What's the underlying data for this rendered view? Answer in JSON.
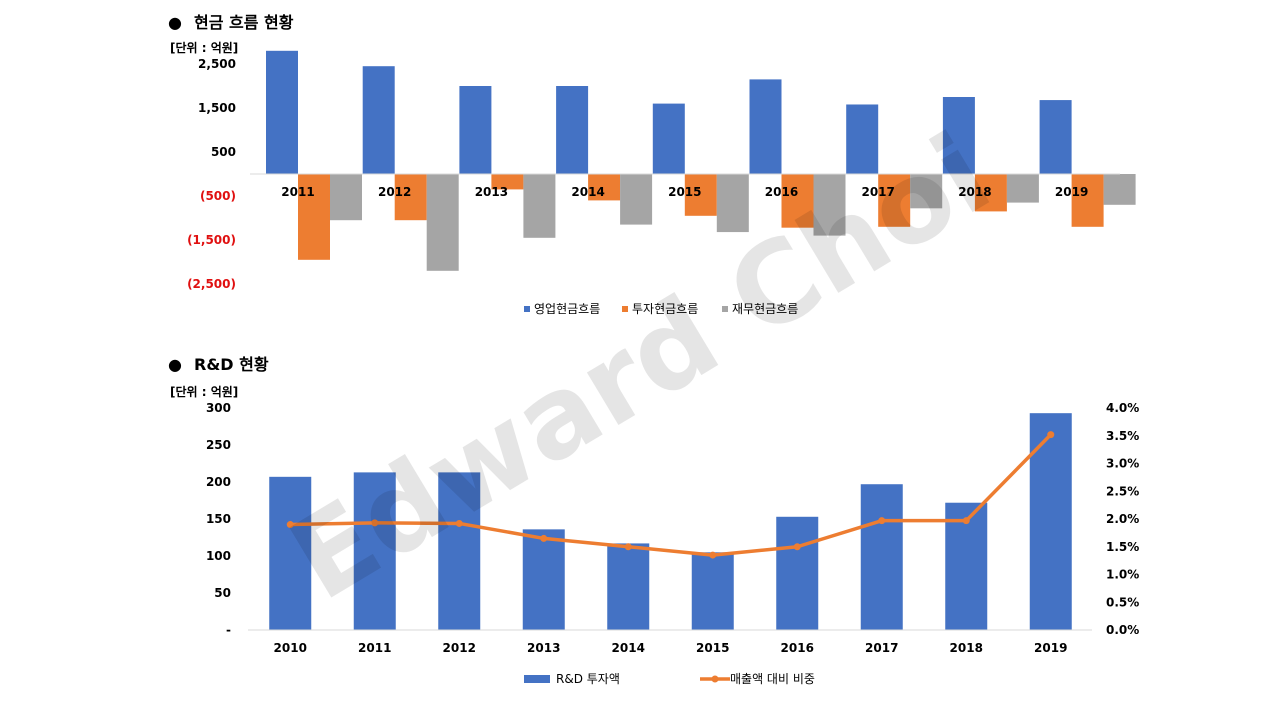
{
  "watermark": "Edward Choi",
  "sections": {
    "cash": {
      "bullet": "●",
      "title": "현금 흐름 현황",
      "unit": "[단위 : 억원]"
    },
    "rnd": {
      "bullet": "●",
      "title": "R&D 현황",
      "unit": "[단위 : 억원]"
    }
  },
  "colors": {
    "blue": "#4472C4",
    "orange": "#ED7D31",
    "gray": "#A5A5A5",
    "negative": "#E01010"
  },
  "chart_data": [
    {
      "type": "bar",
      "categories": [
        "2011",
        "2012",
        "2013",
        "2014",
        "2015",
        "2016",
        "2017",
        "2018",
        "2019"
      ],
      "series": [
        {
          "name": "영업현금흐름",
          "values": [
            2800,
            2450,
            2000,
            2000,
            1600,
            2150,
            1580,
            1750,
            1680
          ]
        },
        {
          "name": "투자현금흐름",
          "values": [
            -1950,
            -1050,
            -350,
            -600,
            -950,
            -1220,
            -1200,
            -850,
            -1200
          ]
        },
        {
          "name": "재무현금흐름",
          "values": [
            -1050,
            -2200,
            -1450,
            -1150,
            -1320,
            -1400,
            -780,
            -650,
            -700
          ]
        }
      ],
      "ylim": [
        -2900,
        2900
      ],
      "yticks": [
        {
          "value": 2500,
          "label": "2,500"
        },
        {
          "value": 1500,
          "label": "1,500"
        },
        {
          "value": 500,
          "label": "500"
        },
        {
          "value": -500,
          "label": "(500)"
        },
        {
          "value": -1500,
          "label": "(1,500)"
        },
        {
          "value": -2500,
          "label": "(2,500)"
        }
      ],
      "legend_position": "bottom",
      "grid": false
    },
    {
      "type": "bar",
      "categories": [
        "2010",
        "2011",
        "2012",
        "2013",
        "2014",
        "2015",
        "2016",
        "2017",
        "2018",
        "2019"
      ],
      "series": [
        {
          "name": "R&D 투자액",
          "type": "bar",
          "axis": "left",
          "values": [
            207,
            213,
            213,
            136,
            117,
            105,
            153,
            197,
            172,
            293
          ]
        },
        {
          "name": "매출액 대비 비중",
          "type": "line",
          "axis": "right",
          "values": [
            1.9,
            1.93,
            1.92,
            1.65,
            1.5,
            1.35,
            1.5,
            1.97,
            1.97,
            3.52
          ]
        }
      ],
      "ylim": [
        0,
        300
      ],
      "y2lim": [
        0,
        4.0
      ],
      "yticks": [
        {
          "value": 300,
          "label": "300"
        },
        {
          "value": 250,
          "label": "250"
        },
        {
          "value": 200,
          "label": "200"
        },
        {
          "value": 150,
          "label": "150"
        },
        {
          "value": 100,
          "label": "100"
        },
        {
          "value": 50,
          "label": "50"
        },
        {
          "value": 0,
          "label": "-"
        }
      ],
      "y2ticks": [
        {
          "value": 4.0,
          "label": "4.0%"
        },
        {
          "value": 3.5,
          "label": "3.5%"
        },
        {
          "value": 3.0,
          "label": "3.0%"
        },
        {
          "value": 2.5,
          "label": "2.5%"
        },
        {
          "value": 2.0,
          "label": "2.0%"
        },
        {
          "value": 1.5,
          "label": "1.5%"
        },
        {
          "value": 1.0,
          "label": "1.0%"
        },
        {
          "value": 0.5,
          "label": "0.5%"
        },
        {
          "value": 0.0,
          "label": "0.0%"
        }
      ],
      "legend_position": "bottom",
      "grid": false
    }
  ]
}
